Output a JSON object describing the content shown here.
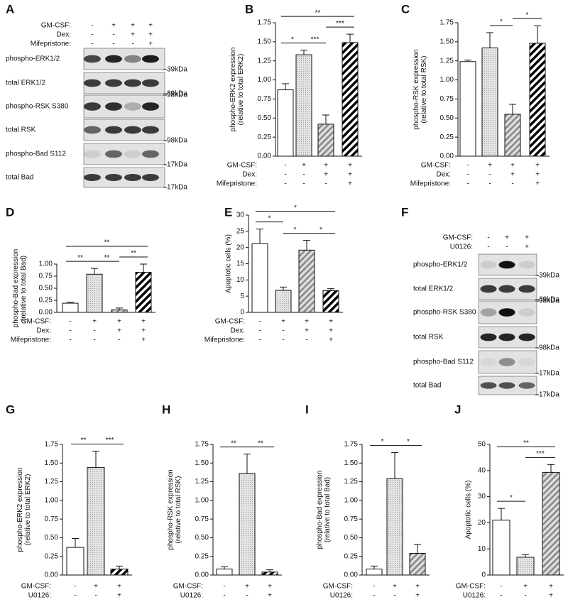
{
  "chart_data": [
    {
      "panel": "A",
      "type": "blot",
      "conditions": [
        {
          "label": "GM-CSF:",
          "signs": [
            "-",
            "+",
            "+",
            "+"
          ]
        },
        {
          "label": "Dex:",
          "signs": [
            "-",
            "-",
            "+",
            "+"
          ]
        },
        {
          "label": "Mifepristone:",
          "signs": [
            "-",
            "-",
            "-",
            "+"
          ]
        }
      ],
      "rows": [
        {
          "label": "phospho-ERK1/2",
          "marker": "39kDa"
        },
        {
          "label": "total ERK1/2",
          "marker": "39kDa"
        },
        {
          "label": "phospho-RSK S380",
          "marker": "98kDa"
        },
        {
          "label": "total RSK",
          "marker": "98kDa"
        },
        {
          "label": "phospho-Bad S112",
          "marker": "17kDa"
        },
        {
          "label": "total Bad",
          "marker": "17kDa"
        }
      ]
    },
    {
      "panel": "B",
      "type": "bar",
      "ylabel": [
        "phospho-ERK2 expression",
        "(relative to total ERK2)"
      ],
      "values": [
        0.87,
        1.33,
        0.42,
        1.49
      ],
      "errors": [
        0.08,
        0.06,
        0.12,
        0.11
      ],
      "fills": [
        "white",
        "dotted",
        "gray-hatched",
        "black-hatched"
      ],
      "ylim": [
        0,
        1.75
      ],
      "yticks": [
        {
          "value": 0,
          "label": "0.00"
        },
        {
          "value": 0.25,
          "label": "0.25"
        },
        {
          "value": 0.5,
          "label": "0.50"
        },
        {
          "value": 0.75,
          "label": "0.75"
        },
        {
          "value": 1,
          "label": "1.00"
        },
        {
          "value": 1.25,
          "label": "1.25"
        },
        {
          "value": 1.5,
          "label": "1.50"
        },
        {
          "value": 1.75,
          "label": "1.75"
        }
      ],
      "conditions": [
        {
          "label": "GM-CSF:",
          "signs": [
            "-",
            "+",
            "+",
            "+"
          ]
        },
        {
          "label": "Dex:",
          "signs": [
            "-",
            "-",
            "+",
            "+"
          ]
        },
        {
          "label": "Mifepristone:",
          "signs": [
            "-",
            "-",
            "-",
            "+"
          ]
        }
      ],
      "significance": [
        {
          "from": 0,
          "to": 1,
          "label": "*"
        },
        {
          "from": 1,
          "to": 2,
          "label": "***"
        },
        {
          "from": 2,
          "to": 3,
          "label": "***"
        },
        {
          "from": 0,
          "to": 3,
          "label": "**"
        }
      ]
    },
    {
      "panel": "C",
      "type": "bar",
      "ylabel": [
        "phospho-RSK expression",
        "(relative to total RSK)"
      ],
      "values": [
        1.24,
        1.42,
        0.55,
        1.48
      ],
      "errors": [
        0.02,
        0.2,
        0.13,
        0.23
      ],
      "fills": [
        "white",
        "dotted",
        "gray-hatched",
        "black-hatched"
      ],
      "ylim": [
        0,
        1.75
      ],
      "yticks": [
        {
          "value": 0,
          "label": "0.00"
        },
        {
          "value": 0.25,
          "label": "0.25"
        },
        {
          "value": 0.5,
          "label": "0.50"
        },
        {
          "value": 0.75,
          "label": "0.75"
        },
        {
          "value": 1,
          "label": "1.00"
        },
        {
          "value": 1.25,
          "label": "1.25"
        },
        {
          "value": 1.5,
          "label": "1.50"
        },
        {
          "value": 1.75,
          "label": "1.75"
        }
      ],
      "conditions": [
        {
          "label": "GM-CSF:",
          "signs": [
            "-",
            "+",
            "+",
            "+"
          ]
        },
        {
          "label": "Dex:",
          "signs": [
            "-",
            "-",
            "+",
            "+"
          ]
        },
        {
          "label": "Mifepristone:",
          "signs": [
            "-",
            "-",
            "-",
            "+"
          ]
        }
      ],
      "significance": [
        {
          "from": 1,
          "to": 2,
          "label": "*"
        },
        {
          "from": 2,
          "to": 3,
          "label": "*"
        }
      ]
    },
    {
      "panel": "D",
      "type": "bar",
      "ylabel": [
        "phospho-Bad expression",
        "(relative to total Bad)"
      ],
      "values": [
        0.19,
        0.79,
        0.05,
        0.83
      ],
      "errors": [
        0.02,
        0.12,
        0.04,
        0.17
      ],
      "fills": [
        "white",
        "dotted",
        "gray-hatched",
        "black-hatched"
      ],
      "ylim": [
        0,
        1
      ],
      "yticks": [
        {
          "value": 0,
          "label": "0.00"
        },
        {
          "value": 0.25,
          "label": "0.25"
        },
        {
          "value": 0.5,
          "label": "0.50"
        },
        {
          "value": 0.75,
          "label": "0.75"
        },
        {
          "value": 1,
          "label": "1.00"
        }
      ],
      "conditions": [
        {
          "label": "GM-CSF:",
          "signs": [
            "-",
            "+",
            "+",
            "+"
          ]
        },
        {
          "label": "Dex:",
          "signs": [
            "-",
            "-",
            "+",
            "+"
          ]
        },
        {
          "label": "Mifepristone:",
          "signs": [
            "-",
            "-",
            "-",
            "+"
          ]
        }
      ],
      "significance": [
        {
          "from": 0,
          "to": 1,
          "label": "**"
        },
        {
          "from": 1,
          "to": 2,
          "label": "**"
        },
        {
          "from": 2,
          "to": 3,
          "label": "**"
        },
        {
          "from": 0,
          "to": 3,
          "label": "**"
        }
      ]
    },
    {
      "panel": "E",
      "type": "bar",
      "ylabel": [
        "Apoptotic cells (%)"
      ],
      "values": [
        21.2,
        6.8,
        19.2,
        6.7
      ],
      "errors": [
        4.5,
        1.0,
        3.0,
        0.6
      ],
      "fills": [
        "white",
        "dotted",
        "gray-hatched",
        "black-hatched"
      ],
      "ylim": [
        0,
        30
      ],
      "yticks": [
        0,
        5,
        10,
        15,
        20,
        25,
        30
      ],
      "conditions": [
        {
          "label": "GM-CSF:",
          "signs": [
            "-",
            "+",
            "+",
            "+"
          ]
        },
        {
          "label": "Dex:",
          "signs": [
            "-",
            "-",
            "+",
            "+"
          ]
        },
        {
          "label": "Mifepristone:",
          "signs": [
            "-",
            "-",
            "-",
            "+"
          ]
        }
      ],
      "significance": [
        {
          "from": 0,
          "to": 1,
          "label": "*"
        },
        {
          "from": 1,
          "to": 2,
          "label": "*"
        },
        {
          "from": 2,
          "to": 3,
          "label": "*"
        },
        {
          "from": 0,
          "to": 3,
          "label": "*"
        }
      ]
    },
    {
      "panel": "F",
      "type": "blot",
      "conditions": [
        {
          "label": "GM-CSF:",
          "signs": [
            "-",
            "+",
            "+"
          ]
        },
        {
          "label": "U0126:",
          "signs": [
            "-",
            "-",
            "+"
          ]
        }
      ],
      "rows": [
        {
          "label": "phospho-ERK1/2",
          "marker": "39kDa"
        },
        {
          "label": "total ERK1/2",
          "marker": "39kDa"
        },
        {
          "label": "phospho-RSK S380",
          "marker": "98kDa"
        },
        {
          "label": "total RSK",
          "marker": "98kDa"
        },
        {
          "label": "phospho-Bad S112",
          "marker": "17kDa"
        },
        {
          "label": "total Bad",
          "marker": "17kDa"
        }
      ]
    },
    {
      "panel": "G",
      "type": "bar",
      "ylabel": [
        "phospho-ERK2 expression",
        "(relative to total ERK2)"
      ],
      "values": [
        0.37,
        1.44,
        0.08
      ],
      "errors": [
        0.12,
        0.22,
        0.04
      ],
      "fills": [
        "white",
        "dotted",
        "black-hatched"
      ],
      "ylim": [
        0,
        1.75
      ],
      "yticks": [
        {
          "value": 0,
          "label": "0.00"
        },
        {
          "value": 0.25,
          "label": "0.25"
        },
        {
          "value": 0.5,
          "label": "0.50"
        },
        {
          "value": 0.75,
          "label": "0.75"
        },
        {
          "value": 1,
          "label": "1.00"
        },
        {
          "value": 1.25,
          "label": "1.25"
        },
        {
          "value": 1.5,
          "label": "1.50"
        },
        {
          "value": 1.75,
          "label": "1.75"
        }
      ],
      "conditions": [
        {
          "label": "GM-CSF:",
          "signs": [
            "-",
            "+",
            "+"
          ]
        },
        {
          "label": "U0126:",
          "signs": [
            "-",
            "-",
            "+"
          ]
        }
      ],
      "significance": [
        {
          "from": 0,
          "to": 1,
          "label": "**"
        },
        {
          "from": 1,
          "to": 2,
          "label": "***"
        }
      ]
    },
    {
      "panel": "H",
      "type": "bar",
      "ylabel": [
        "phospho-RSK expression",
        "(relative to total RSK)"
      ],
      "values": [
        0.08,
        1.36,
        0.04
      ],
      "errors": [
        0.03,
        0.26,
        0.03
      ],
      "fills": [
        "white",
        "dotted",
        "black-hatched"
      ],
      "ylim": [
        0,
        1.75
      ],
      "yticks": [
        {
          "value": 0,
          "label": "0.00"
        },
        {
          "value": 0.25,
          "label": "0.25"
        },
        {
          "value": 0.5,
          "label": "0.50"
        },
        {
          "value": 0.75,
          "label": "0.75"
        },
        {
          "value": 1,
          "label": "1.00"
        },
        {
          "value": 1.25,
          "label": "1.25"
        },
        {
          "value": 1.5,
          "label": "1.50"
        },
        {
          "value": 1.75,
          "label": "1.75"
        }
      ],
      "conditions": [
        {
          "label": "GM-CSF:",
          "signs": [
            "-",
            "+",
            "+"
          ]
        },
        {
          "label": "U0126:",
          "signs": [
            "-",
            "-",
            "+"
          ]
        }
      ],
      "significance": [
        {
          "from": 0,
          "to": 1,
          "label": "**"
        },
        {
          "from": 1,
          "to": 2,
          "label": "**"
        }
      ]
    },
    {
      "panel": "I",
      "type": "bar",
      "ylabel": [
        "phospho-Bad expression",
        "(relative to total Bad)"
      ],
      "values": [
        0.08,
        1.29,
        0.29
      ],
      "errors": [
        0.04,
        0.35,
        0.12
      ],
      "fills": [
        "white",
        "dotted",
        "gray-hatched"
      ],
      "ylim": [
        0,
        1.75
      ],
      "yticks": [
        {
          "value": 0,
          "label": "0.00"
        },
        {
          "value": 0.25,
          "label": "0.25"
        },
        {
          "value": 0.5,
          "label": "0.50"
        },
        {
          "value": 0.75,
          "label": "0.75"
        },
        {
          "value": 1,
          "label": "1.00"
        },
        {
          "value": 1.25,
          "label": "1.25"
        },
        {
          "value": 1.5,
          "label": "1.50"
        },
        {
          "value": 1.75,
          "label": "1.75"
        }
      ],
      "conditions": [
        {
          "label": "GM-CSF:",
          "signs": [
            "-",
            "+",
            "+"
          ]
        },
        {
          "label": "U0126:",
          "signs": [
            "-",
            "-",
            "+"
          ]
        }
      ],
      "significance": [
        {
          "from": 0,
          "to": 1,
          "label": "*"
        },
        {
          "from": 1,
          "to": 2,
          "label": "*"
        }
      ]
    },
    {
      "panel": "J",
      "type": "bar",
      "ylabel": [
        "Apoptotic cells (%)"
      ],
      "values": [
        21.0,
        6.8,
        39.3
      ],
      "errors": [
        4.5,
        1.0,
        3.0
      ],
      "fills": [
        "white",
        "dotted",
        "gray-hatched"
      ],
      "ylim": [
        0,
        50
      ],
      "yticks": [
        0,
        10,
        20,
        30,
        40,
        50
      ],
      "conditions": [
        {
          "label": "GM-CSF:",
          "signs": [
            "-",
            "+",
            "+"
          ]
        },
        {
          "label": "U0126:",
          "signs": [
            "-",
            "-",
            "+"
          ]
        }
      ],
      "significance": [
        {
          "from": 0,
          "to": 1,
          "label": "*"
        },
        {
          "from": 1,
          "to": 2,
          "label": "***"
        },
        {
          "from": 0,
          "to": 2,
          "label": "**"
        }
      ]
    }
  ]
}
